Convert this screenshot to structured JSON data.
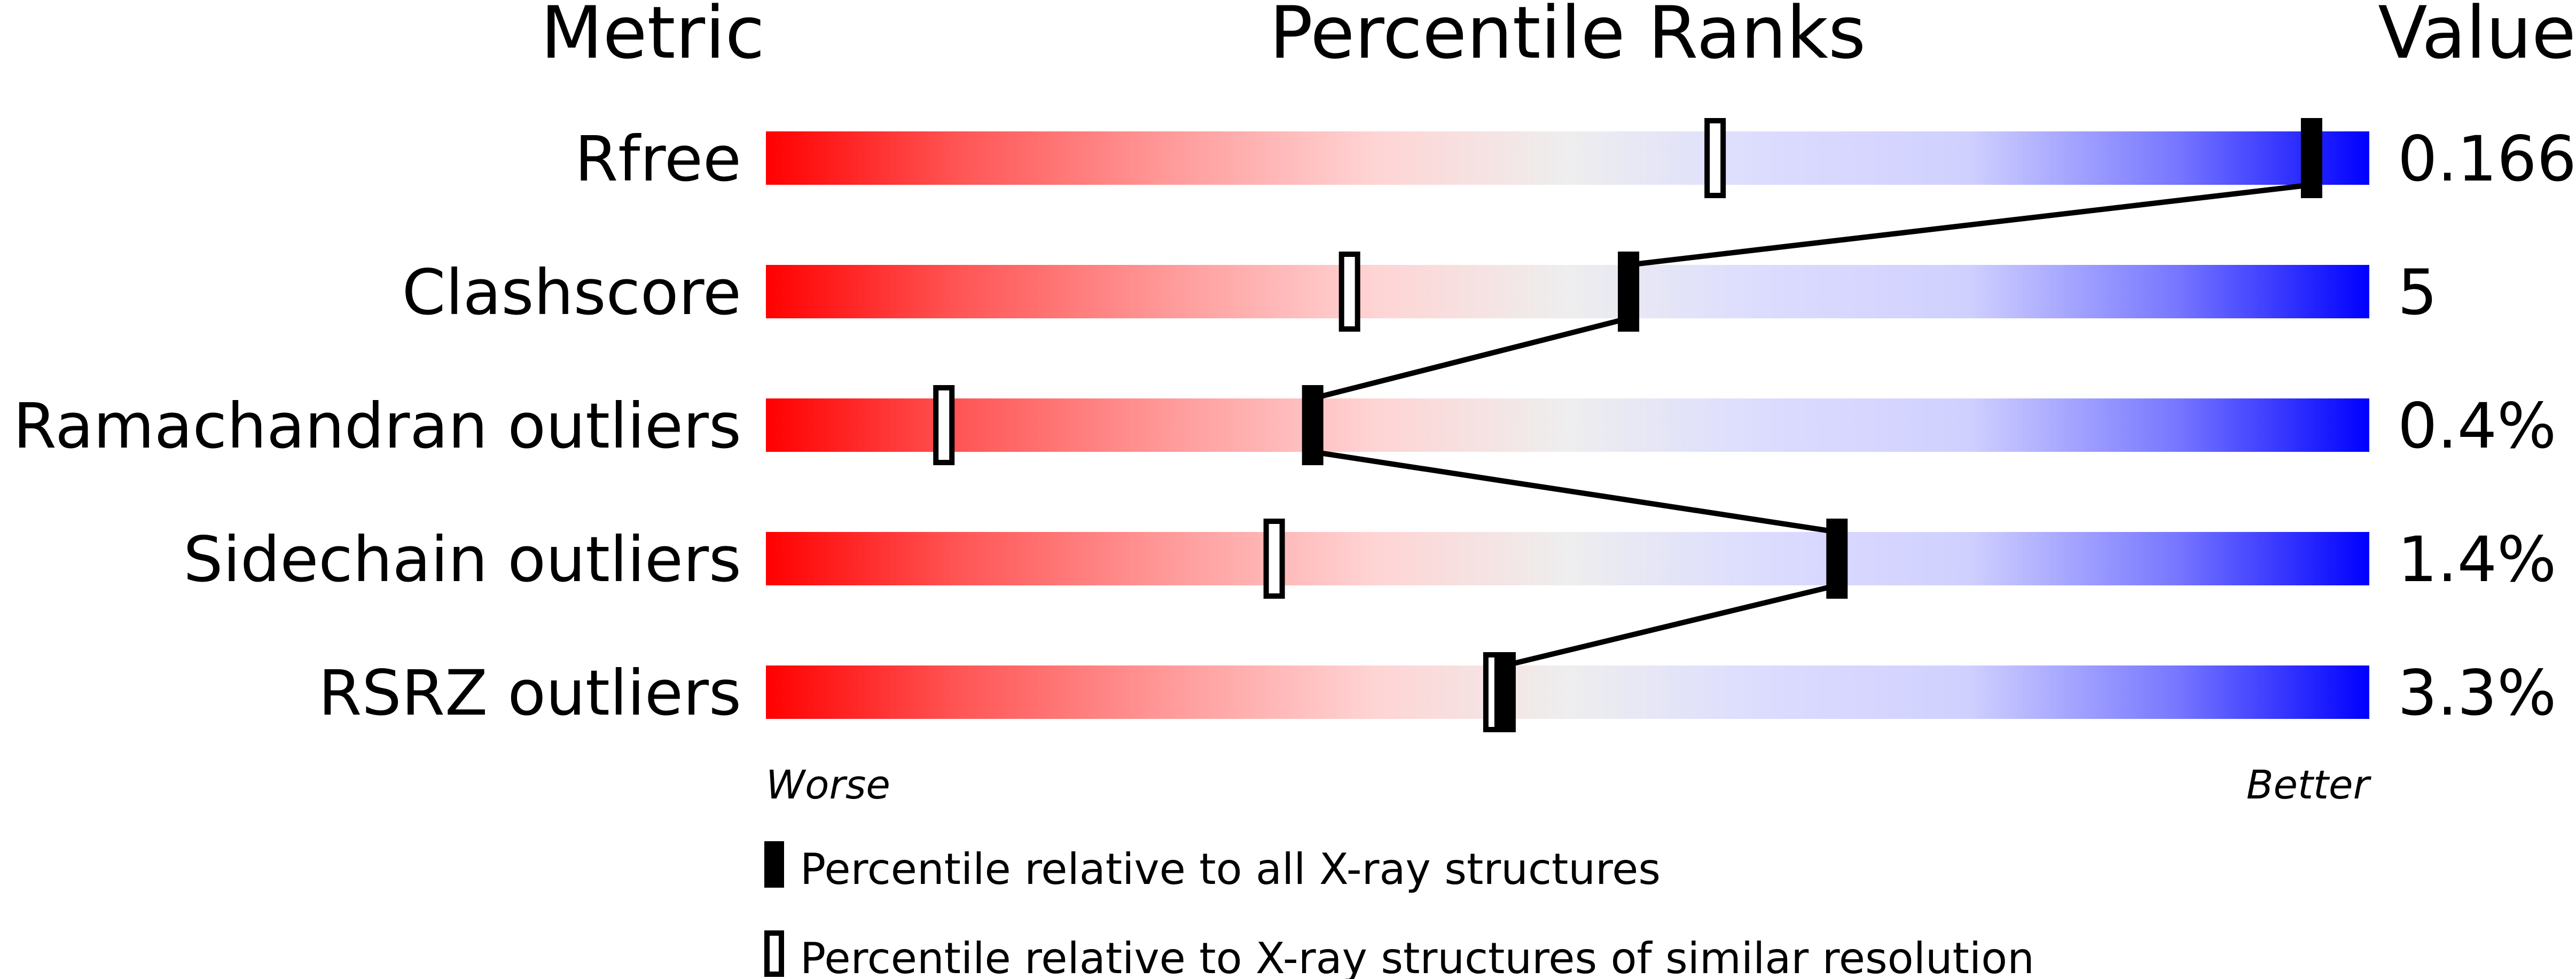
{
  "chart_data": {
    "type": "bar",
    "headers": {
      "metric": "Metric",
      "ranks": "Percentile Ranks",
      "value": "Value"
    },
    "xlim": [
      0,
      100
    ],
    "axis_labels": {
      "worse": "Worse",
      "better": "Better"
    },
    "metrics": [
      {
        "name": "Rfree",
        "value": "0.166",
        "percentile_all": 96.4,
        "percentile_similar": 59.2
      },
      {
        "name": "Clashscore",
        "value": "5",
        "percentile_all": 53.8,
        "percentile_similar": 36.4
      },
      {
        "name": "Ramachandran outliers",
        "value": "0.4%",
        "percentile_all": 34.1,
        "percentile_similar": 11.1
      },
      {
        "name": "Sidechain outliers",
        "value": "1.4%",
        "percentile_all": 66.8,
        "percentile_similar": 31.7
      },
      {
        "name": "RSRZ outliers",
        "value": "3.3%",
        "percentile_all": 46.1,
        "percentile_similar": 45.4
      }
    ],
    "legend": [
      {
        "marker": "filled",
        "label": "Percentile relative to all X-ray structures"
      },
      {
        "marker": "open",
        "label": "Percentile relative to X-ray structures of similar resolution"
      }
    ],
    "colors": {
      "worse": "#ff0000",
      "middle": "#eeeeee",
      "better": "#0000ff",
      "marker": "#000000"
    }
  }
}
